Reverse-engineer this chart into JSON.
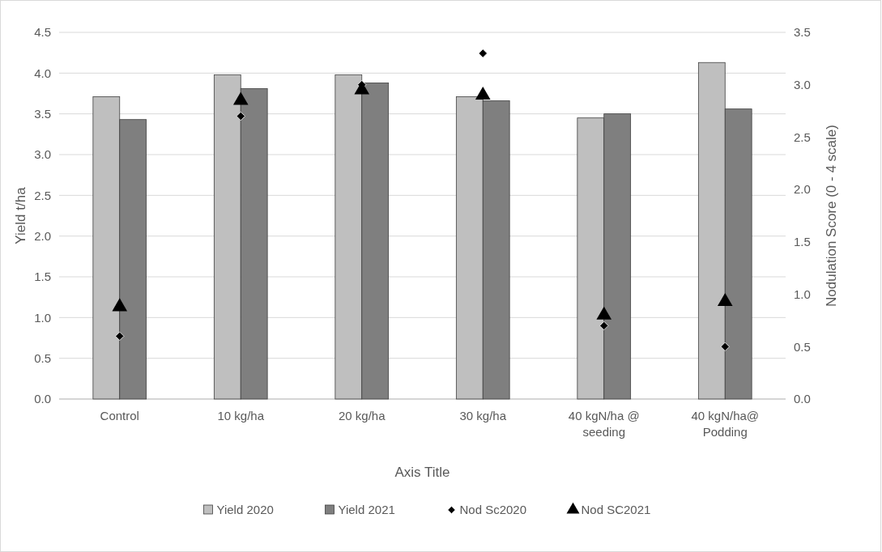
{
  "chart_data": {
    "type": "bar",
    "xlabel": "Axis Title",
    "ylabel": "Yield t/ha",
    "y2label": "Nodulation Score (0 - 4 scale)",
    "categories": [
      "Control",
      "10 kg/ha",
      "20 kg/ha",
      "30 kg/ha",
      "40 kgN/ha @ seeding",
      "40 kgN/ha@ Podding"
    ],
    "series": [
      {
        "name": "Yield 2020",
        "color": "#bfbfbf",
        "values": [
          3.71,
          3.98,
          3.98,
          3.71,
          3.45,
          4.13
        ]
      },
      {
        "name": "Yield 2021",
        "color": "#7f7f7f",
        "values": [
          3.43,
          3.81,
          3.88,
          3.66,
          3.5,
          3.56
        ]
      },
      {
        "name": "Nod Sc2020",
        "type": "scatter",
        "axis": "y2",
        "marker": "diamond",
        "color": "#000000",
        "values": [
          0.6,
          2.7,
          3.0,
          3.3,
          0.7,
          0.5
        ]
      },
      {
        "name": "Nod SC2021",
        "type": "scatter",
        "axis": "y2",
        "marker": "triangle",
        "color": "#000000",
        "values": [
          0.88,
          2.85,
          2.95,
          2.9,
          0.8,
          0.93
        ]
      }
    ],
    "ylim": [
      0,
      4.5
    ],
    "yticks": [
      {
        "value": 0,
        "label": "0.0"
      },
      {
        "value": 0.5,
        "label": "0.5"
      },
      {
        "value": 1,
        "label": "1.0"
      },
      {
        "value": 1.5,
        "label": "1.5"
      },
      {
        "value": 2,
        "label": "2.0"
      },
      {
        "value": 2.5,
        "label": "2.5"
      },
      {
        "value": 3,
        "label": "3.0"
      },
      {
        "value": 3.5,
        "label": "3.5"
      },
      {
        "value": 4,
        "label": "4.0"
      },
      {
        "value": 4.5,
        "label": "4.5"
      }
    ],
    "y2lim": [
      0,
      3.5
    ],
    "y2ticks": [
      {
        "value": 0,
        "label": "0.0"
      },
      {
        "value": 0.5,
        "label": "0.5"
      },
      {
        "value": 1,
        "label": "1.0"
      },
      {
        "value": 1.5,
        "label": "1.5"
      },
      {
        "value": 2,
        "label": "2.0"
      },
      {
        "value": 2.5,
        "label": "2.5"
      },
      {
        "value": 3,
        "label": "3.0"
      },
      {
        "value": 3.5,
        "label": "3.5"
      }
    ],
    "grid": "y",
    "legend": "bottom"
  }
}
